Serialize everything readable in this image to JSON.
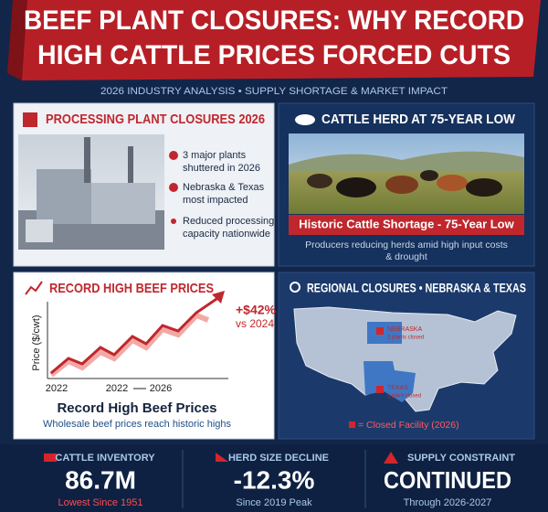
{
  "header": {
    "title_lines": [
      "BEEF PLANT CLOSURES: WHY RECORD",
      "HIGH CATTLE PRICES FORCED CUTS"
    ],
    "subtitle": "2026 INDUSTRY ANALYSIS • SUPPLY SHORTAGE & MARKET IMPACT"
  },
  "panels": [
    {
      "title": "PROCESSING PLANT CLOSURES 2026",
      "bullets": [
        [
          "3 major plants",
          "shuttered in 2026"
        ],
        [
          "Nebraska & Texas",
          "most impacted"
        ],
        [
          "Reduced processing",
          "capacity nationwide"
        ]
      ]
    },
    {
      "title": "CATTLE HERD AT 75-YEAR LOW",
      "caption": "Historic Cattle Shortage - 75-Year Low",
      "text_lines": [
        "Producers reducing herds amid high input costs",
        "& drought"
      ]
    },
    {
      "title": "RECORD HIGH BEEF PRICES",
      "y_label": "Price ($/cwt)",
      "x_labels": [
        "2022",
        "2022",
        "2026"
      ],
      "annotation_lines": [
        "+$42%",
        "vs 2024"
      ],
      "caption": "Record High Beef Prices",
      "subcaption": "Wholesale beef prices reach historic highs"
    },
    {
      "title": "REGIONAL CLOSURES • NEBRASKA & TEXAS",
      "regions": [
        {
          "name": "NEBRASKA",
          "note": "2 plants closed"
        },
        {
          "name": "TEXAS",
          "note": "1 plant closed"
        }
      ],
      "legend": "= Closed Facility (2026)"
    }
  ],
  "stats": [
    {
      "label": "CATTLE INVENTORY",
      "value": "86.7M",
      "note": "Lowest Since 1951"
    },
    {
      "label": "HERD SIZE DECLINE",
      "value": "-12.3%",
      "note": "Since 2019 Peak"
    },
    {
      "label": "SUPPLY CONSTRAINT",
      "value": "CONTINUED",
      "note": "Through 2026-2027"
    }
  ]
}
